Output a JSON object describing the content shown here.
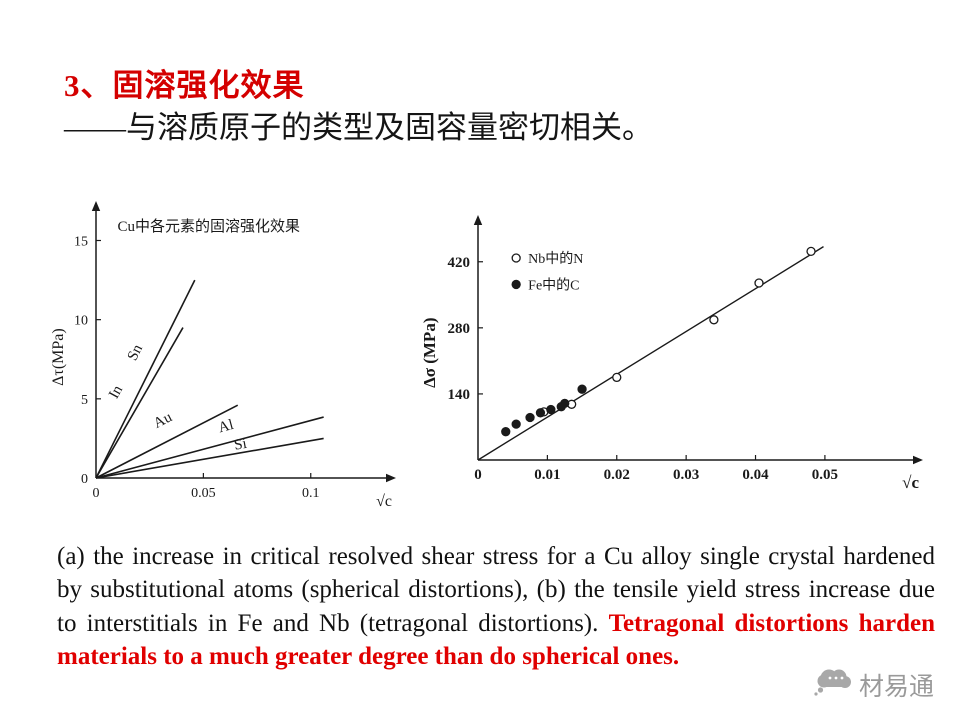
{
  "slide": {
    "title": "3、固溶强化效果",
    "subtitle": "——与溶质原子的类型及固容量密切相关。"
  },
  "caption": {
    "main": "(a) the increase in critical resolved shear stress for a Cu alloy single crystal hardened by substitutional atoms (spherical distortions), (b) the tensile yield stress increase due to interstitials in Fe and Nb (tetragonal distortions). ",
    "highlight": "Tetragonal distortions harden materials to a much greater degree than do spherical ones."
  },
  "watermark": {
    "text": "材易通"
  },
  "colors": {
    "title_red": "#d40000",
    "highlight_red": "#e00000",
    "text": "#1a1a1a",
    "watermark_gray": "#9a9a9a",
    "chart_ink": "#1a1a1a"
  },
  "chart_data": [
    {
      "type": "line",
      "title": "Cu中各元素的固溶强化效果",
      "title_at": [
        0.01,
        15.6
      ],
      "xlabel": "√c",
      "ylabel": "Δτ(MPa)",
      "xlim": [
        0,
        0.122
      ],
      "ylim": [
        0,
        16.8
      ],
      "xticks": [
        [
          0,
          "0"
        ],
        [
          0.05,
          "0.05"
        ],
        [
          0.1,
          "0.1"
        ]
      ],
      "yticks": [
        [
          0,
          "0"
        ],
        [
          5,
          "5"
        ],
        [
          10,
          "10"
        ],
        [
          15,
          "15"
        ]
      ],
      "series": [
        {
          "name": "Sn",
          "points": [
            [
              0,
              0
            ],
            [
              0.046,
              12.5
            ]
          ],
          "label_at": [
            0.02,
            7.8
          ],
          "label_rotate": -63
        },
        {
          "name": "In",
          "points": [
            [
              0,
              0
            ],
            [
              0.0405,
              9.5
            ]
          ],
          "label_at": [
            0.011,
            5.3
          ],
          "label_rotate": -61
        },
        {
          "name": "Au",
          "points": [
            [
              0,
              0
            ],
            [
              0.066,
              4.6
            ]
          ],
          "label_at": [
            0.032,
            3.4
          ],
          "label_rotate": -27
        },
        {
          "name": "Al",
          "points": [
            [
              0,
              0
            ],
            [
              0.106,
              3.85
            ]
          ],
          "label_at": [
            0.061,
            3.0
          ],
          "label_rotate": -15
        },
        {
          "name": "Si",
          "points": [
            [
              0,
              0
            ],
            [
              0.106,
              2.5
            ]
          ],
          "label_at": [
            0.0676,
            1.85
          ],
          "label_rotate": -10
        }
      ]
    },
    {
      "type": "scatter",
      "xlabel": "√c",
      "ylabel": "Δσ (MPa)",
      "xlim": [
        0,
        0.0565
      ],
      "ylim": [
        0,
        500
      ],
      "xticks": [
        [
          0,
          "0"
        ],
        [
          0.01,
          "0.01"
        ],
        [
          0.02,
          "0.02"
        ],
        [
          0.03,
          "0.03"
        ],
        [
          0.04,
          "0.04"
        ],
        [
          0.05,
          "0.05"
        ]
      ],
      "yticks": [
        [
          140,
          "140"
        ],
        [
          280,
          "280"
        ],
        [
          420,
          "420"
        ]
      ],
      "fit_line": [
        [
          0,
          0
        ],
        [
          0.0498,
          452
        ]
      ],
      "series": [
        {
          "name": "Nb中的N",
          "marker": "open",
          "points": [
            [
              0.0095,
              102
            ],
            [
              0.0135,
              118
            ],
            [
              0.02,
              175
            ],
            [
              0.034,
              297
            ],
            [
              0.0405,
              375
            ],
            [
              0.048,
              442
            ]
          ]
        },
        {
          "name": "Fe中的C",
          "marker": "filled",
          "points": [
            [
              0.004,
              60
            ],
            [
              0.0055,
              76
            ],
            [
              0.0075,
              90
            ],
            [
              0.009,
              100
            ],
            [
              0.0105,
              107
            ],
            [
              0.012,
              113
            ],
            [
              0.0125,
              120
            ],
            [
              0.015,
              150
            ]
          ]
        }
      ],
      "legend": [
        {
          "marker": "open",
          "label": "Nb中的N",
          "at": [
            0.0055,
            428
          ]
        },
        {
          "marker": "filled",
          "label": "Fe中的C",
          "at": [
            0.0055,
            372
          ]
        }
      ]
    }
  ]
}
